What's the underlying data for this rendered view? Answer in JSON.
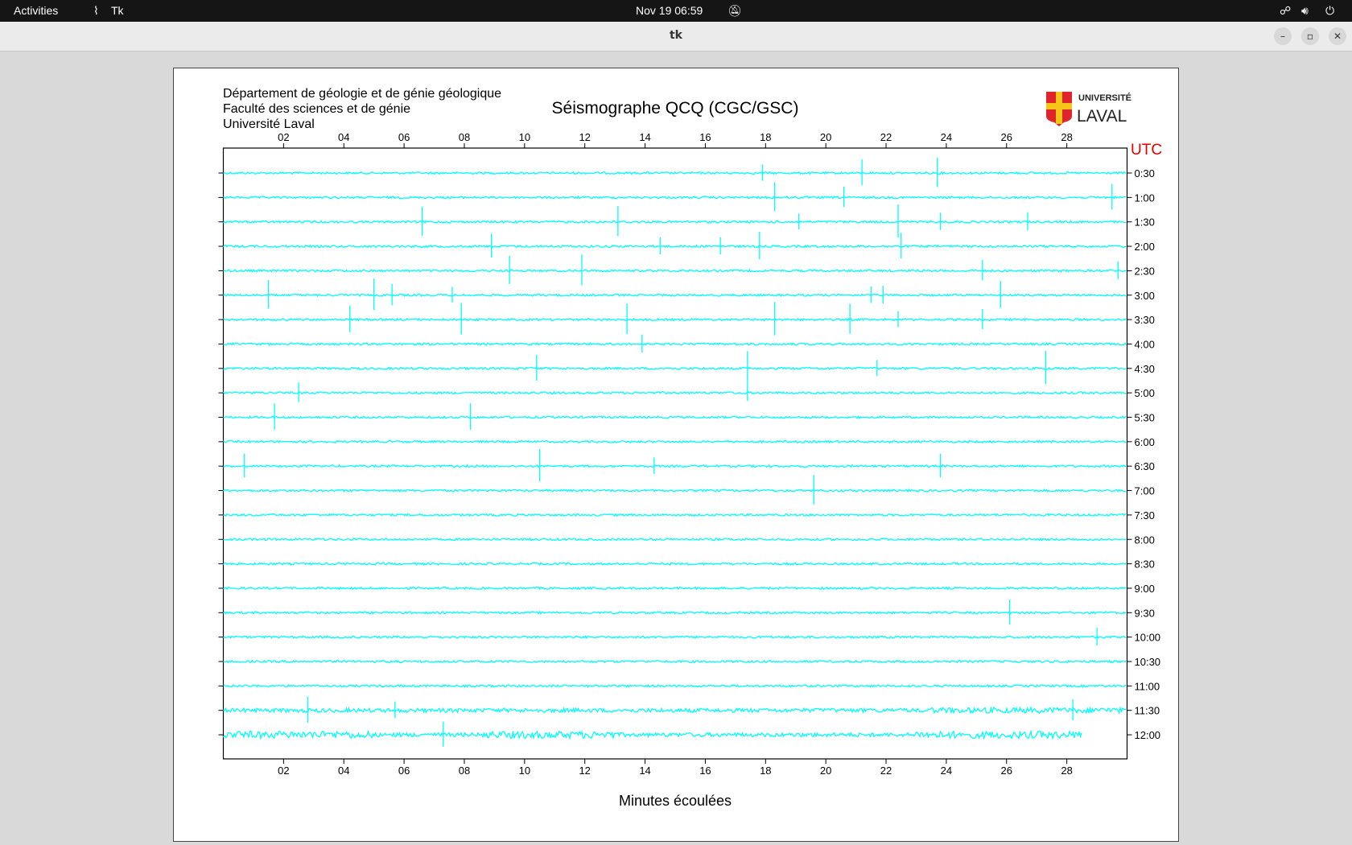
{
  "topbar": {
    "activities": "Activities",
    "app_name": "Tk",
    "datetime": "Nov 19  06:59",
    "icons": [
      "app-icon",
      "notifications-off-icon",
      "network-icon",
      "volume-icon",
      "power-icon"
    ]
  },
  "window": {
    "title": "tk",
    "buttons": [
      "minimize",
      "maximize",
      "close"
    ]
  },
  "header": {
    "line1": "Département de géologie et de génie géologique",
    "line2": "Faculté des sciences et de génie",
    "line3": "Université Laval",
    "title": "Séismographe QCQ (CGC/GSC)",
    "logo_text": "UNIVERSITÉ LAVAL"
  },
  "chart_data": {
    "type": "line",
    "title": "Séismographe QCQ (CGC/GSC)",
    "xlabel": "Minutes écoulées",
    "ylabel": "UTC",
    "xlim": [
      0,
      30
    ],
    "x_ticks": [
      "02",
      "04",
      "06",
      "08",
      "10",
      "12",
      "14",
      "16",
      "18",
      "20",
      "22",
      "24",
      "26",
      "28"
    ],
    "trace_color": "#00ffff",
    "rows": [
      {
        "label": "0:30",
        "events": [
          17.9,
          21.2,
          23.7
        ]
      },
      {
        "label": "1:00",
        "events": [
          18.3,
          20.6,
          29.5
        ]
      },
      {
        "label": "1:30",
        "events": [
          6.6,
          13.1,
          19.1,
          22.4,
          23.8,
          26.7
        ]
      },
      {
        "label": "2:00",
        "events": [
          8.9,
          14.5,
          16.5,
          17.8,
          22.5
        ]
      },
      {
        "label": "2:30",
        "events": [
          9.5,
          11.9,
          25.2,
          29.7
        ]
      },
      {
        "label": "3:00",
        "events": [
          1.5,
          5.0,
          5.6,
          7.6,
          21.5,
          21.9,
          25.8
        ]
      },
      {
        "label": "3:30",
        "events": [
          4.2,
          7.9,
          13.4,
          18.3,
          20.8,
          22.4,
          25.2
        ]
      },
      {
        "label": "4:00",
        "events": [
          13.9
        ]
      },
      {
        "label": "4:30",
        "events": [
          10.4,
          17.4,
          21.7,
          27.3
        ]
      },
      {
        "label": "5:00",
        "events": [
          2.5,
          17.4
        ]
      },
      {
        "label": "5:30",
        "events": [
          1.7,
          8.2
        ]
      },
      {
        "label": "6:00",
        "events": []
      },
      {
        "label": "6:30",
        "events": [
          0.7,
          10.5,
          14.3,
          23.8
        ]
      },
      {
        "label": "7:00",
        "events": [
          19.6
        ]
      },
      {
        "label": "7:30",
        "events": []
      },
      {
        "label": "8:00",
        "events": []
      },
      {
        "label": "8:30",
        "events": []
      },
      {
        "label": "9:00",
        "events": []
      },
      {
        "label": "9:30",
        "events": [
          26.1
        ]
      },
      {
        "label": "10:00",
        "events": [
          29.0
        ]
      },
      {
        "label": "10:30",
        "events": []
      },
      {
        "label": "11:00",
        "events": []
      },
      {
        "label": "11:30",
        "events": [
          2.8,
          5.7,
          28.2
        ]
      },
      {
        "label": "12:00",
        "events": [
          7.3
        ],
        "end_minute": 28.5
      }
    ]
  }
}
